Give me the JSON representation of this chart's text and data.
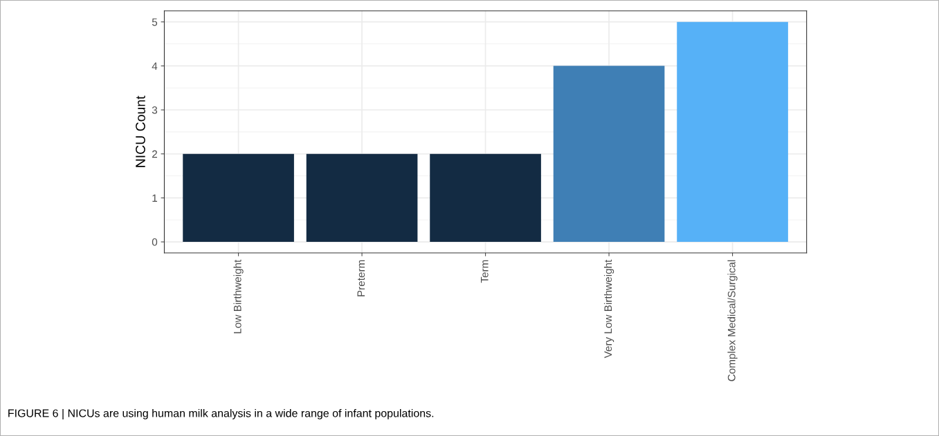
{
  "chart_data": {
    "type": "bar",
    "ylabel": "NICU Count",
    "categories": [
      "Low Birthweight",
      "Preterm",
      "Term",
      "Very Low Birthweight",
      "Complex Medical/Surgical"
    ],
    "values": [
      2,
      2,
      2,
      4,
      5
    ],
    "colors": [
      "#132b43",
      "#132b43",
      "#132b43",
      "#3f7fb5",
      "#56b1f7"
    ],
    "ylim": [
      -0.25,
      5.25
    ],
    "yticks": [
      0,
      1,
      2,
      3,
      4,
      5
    ],
    "grid": true,
    "annotations": [
      "FIGURE 6 | NICUs are using human milk analysis in a wide range of infant populations."
    ]
  }
}
